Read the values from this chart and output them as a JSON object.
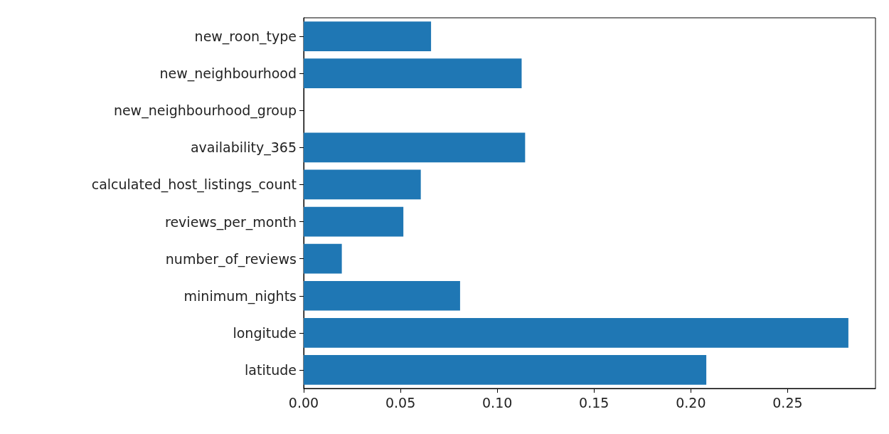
{
  "chart_data": {
    "type": "bar",
    "orientation": "horizontal",
    "categories": [
      "new_roon_type",
      "new_neighbourhood",
      "new_neighbourhood_group",
      "availability_365",
      "calculated_host_listings_count",
      "reviews_per_month",
      "number_of_reviews",
      "minimum_nights",
      "longitude",
      "latitude"
    ],
    "values": [
      0.0658,
      0.1126,
      0.0,
      0.1144,
      0.0605,
      0.0515,
      0.0197,
      0.0808,
      0.2814,
      0.208
    ],
    "color": "#1f77b4",
    "xlim": [
      0,
      0.2954
    ],
    "xticks": [
      {
        "value": 0,
        "label": "0.00"
      },
      {
        "value": 0.05,
        "label": "0.05"
      },
      {
        "value": 0.1,
        "label": "0.10"
      },
      {
        "value": 0.15,
        "label": "0.15"
      },
      {
        "value": 0.2,
        "label": "0.20"
      },
      {
        "value": 0.25,
        "label": "0.25"
      }
    ],
    "grid": false
  }
}
